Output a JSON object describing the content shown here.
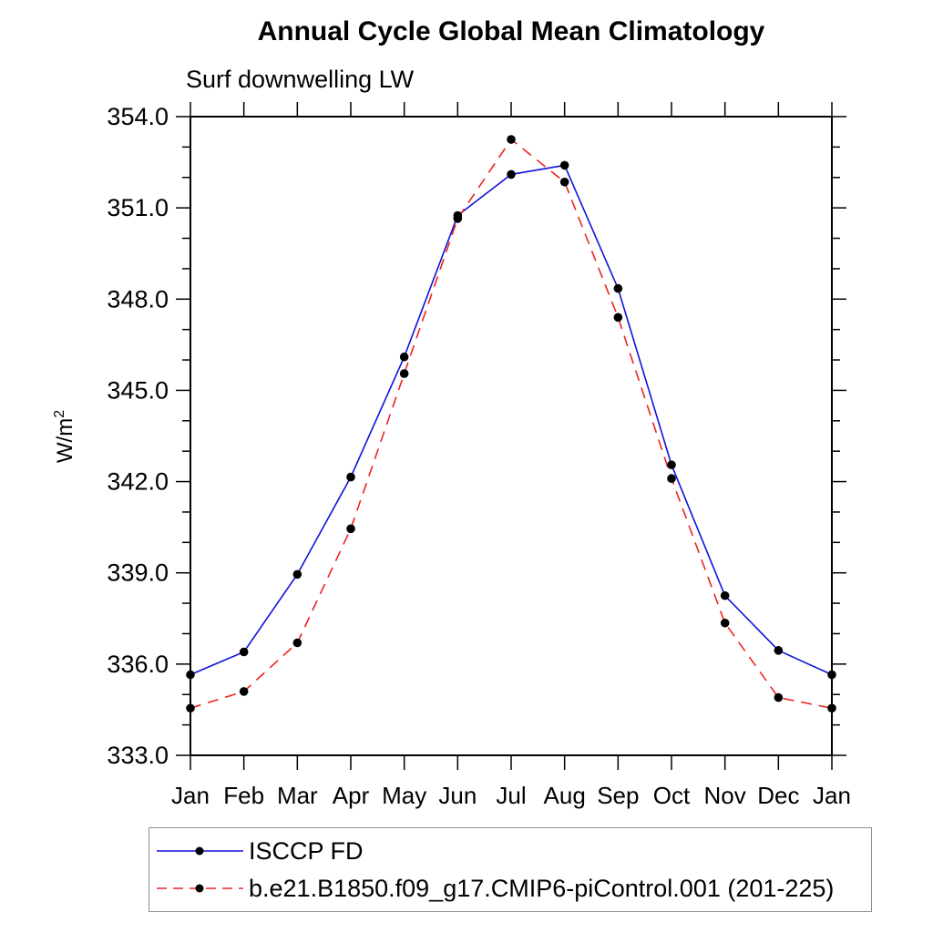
{
  "labels": {
    "ylabel_base": "W/m",
    "ylabel_exp": "2"
  },
  "chart_data": {
    "type": "line",
    "title": "Annual Cycle Global Mean Climatology",
    "subtitle": "Surf downwelling LW",
    "ylabel": "W/m²",
    "xlabel": "",
    "x_categories": [
      "Jan",
      "Feb",
      "Mar",
      "Apr",
      "May",
      "Jun",
      "Jul",
      "Aug",
      "Sep",
      "Oct",
      "Nov",
      "Dec",
      "Jan"
    ],
    "ylim": [
      333.0,
      354.0
    ],
    "ytick_major_step": 3.0,
    "ytick_minor_step": 1.0,
    "ytick_labels": [
      "333.0",
      "336.0",
      "339.0",
      "342.0",
      "345.0",
      "348.0",
      "351.0",
      "354.0"
    ],
    "grid": false,
    "legend_position": "bottom-left",
    "frame_color": "#000000",
    "marker_color": "#000000",
    "series": [
      {
        "name": "ISCCP FD",
        "color": "#1111dd",
        "style": "solid",
        "marker": "circle",
        "values": [
          335.65,
          336.4,
          338.95,
          342.15,
          346.1,
          350.75,
          352.1,
          352.4,
          348.35,
          342.55,
          338.25,
          336.45,
          335.65
        ]
      },
      {
        "name": "b.e21.B1850.f09_g17.CMIP6-piControl.001 (201-225)",
        "color": "#ee2222",
        "style": "dashed",
        "marker": "circle",
        "values": [
          334.55,
          335.1,
          336.7,
          340.45,
          345.55,
          350.65,
          353.25,
          351.85,
          347.4,
          342.1,
          337.35,
          334.9,
          334.55
        ]
      }
    ]
  }
}
